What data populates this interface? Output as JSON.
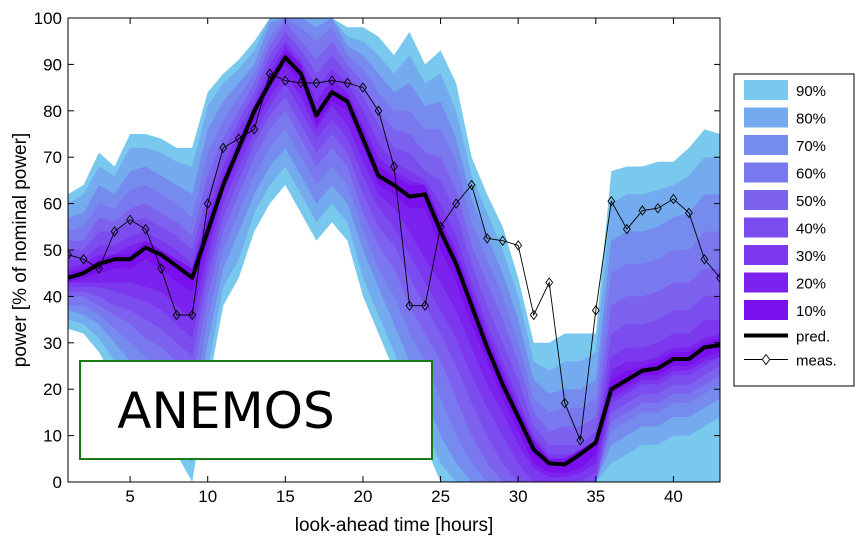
{
  "chart_data": {
    "type": "area",
    "xlabel": "look-ahead time [hours]",
    "ylabel": "power [% of nominal power]",
    "xlim": [
      1,
      43
    ],
    "ylim": [
      0,
      100
    ],
    "xticks": [
      5,
      10,
      15,
      20,
      25,
      30,
      35,
      40
    ],
    "yticks": [
      0,
      10,
      20,
      30,
      40,
      50,
      60,
      70,
      80,
      90,
      100
    ],
    "legend_position": "right",
    "interval_levels": [
      "90%",
      "80%",
      "70%",
      "60%",
      "50%",
      "40%",
      "30%",
      "20%",
      "10%"
    ],
    "interval_colors": [
      "#79c8ee",
      "#74aaee",
      "#758cee",
      "#7a78ee",
      "#7c62ee",
      "#7c4dee",
      "#7b38ee",
      "#7b22ee",
      "#7a10ee"
    ],
    "x": [
      1,
      2,
      3,
      4,
      5,
      6,
      7,
      8,
      9,
      10,
      11,
      12,
      13,
      14,
      15,
      16,
      17,
      18,
      19,
      20,
      21,
      22,
      23,
      24,
      25,
      26,
      27,
      28,
      29,
      30,
      31,
      32,
      33,
      34,
      35,
      36,
      37,
      38,
      39,
      40,
      41,
      42,
      43
    ],
    "pred": [
      44,
      45,
      47,
      48,
      48,
      50.5,
      49,
      46.5,
      44,
      54,
      64,
      72,
      80,
      86,
      91.5,
      88,
      79,
      84,
      82,
      74,
      66,
      64,
      61.5,
      62,
      54,
      47,
      38,
      29,
      21,
      14,
      7,
      4,
      3.8,
      6,
      8.5,
      20,
      22,
      24,
      24.5,
      26.5,
      26.5,
      29,
      29.5
    ],
    "meas": [
      49,
      48,
      46,
      54,
      56.5,
      54.5,
      46,
      36,
      36,
      60,
      72,
      74,
      76,
      88,
      86.5,
      86,
      86,
      86.5,
      86,
      85,
      80,
      68,
      38,
      38,
      55,
      60,
      64,
      52.5,
      52,
      51,
      36,
      43,
      17,
      9,
      37,
      60.5,
      54.5,
      58.5,
      59,
      61,
      58,
      48,
      44
    ],
    "bands": [
      {
        "level": "90%",
        "lower": [
          33,
          32,
          28,
          22,
          18,
          14,
          12,
          6,
          0,
          20,
          38,
          44,
          54,
          60,
          64,
          58,
          52,
          56,
          52,
          40,
          32,
          24,
          16,
          8,
          0,
          0,
          0,
          0,
          0,
          0,
          0,
          0,
          0,
          0,
          0,
          0,
          0,
          0,
          0,
          0,
          0,
          0,
          0
        ],
        "upper": [
          62,
          64,
          71,
          68,
          75,
          75,
          74,
          72,
          72,
          84,
          88,
          91,
          95,
          100,
          100,
          100,
          100,
          100,
          98,
          98,
          96,
          92,
          97,
          90,
          93,
          86,
          70,
          62,
          55,
          44,
          30,
          30,
          32,
          32,
          32,
          67,
          68,
          68,
          69,
          69,
          72,
          76,
          75
        ]
      },
      {
        "level": "80%",
        "lower": [
          35,
          34,
          31,
          26,
          22,
          18,
          16,
          10,
          4,
          24,
          42,
          48,
          58,
          64,
          68,
          62,
          56,
          60,
          56,
          44,
          36,
          28,
          20,
          12,
          4,
          0,
          0,
          0,
          0,
          0,
          0,
          0,
          0,
          0,
          0,
          4,
          6,
          8,
          8,
          10,
          10,
          12,
          14
        ],
        "upper": [
          60,
          62,
          68,
          66,
          72,
          72,
          71,
          69,
          68,
          81,
          86,
          89,
          93,
          100,
          100,
          100,
          100,
          100,
          96,
          95,
          92,
          88,
          92,
          86,
          88,
          80,
          66,
          58,
          50,
          40,
          26,
          24,
          26,
          26,
          28,
          60,
          62,
          62,
          63,
          64,
          66,
          70,
          70
        ]
      },
      {
        "level": "70%",
        "lower": [
          37,
          36,
          34,
          30,
          26,
          23,
          20,
          16,
          10,
          30,
          46,
          54,
          62,
          68,
          72,
          66,
          60,
          64,
          60,
          50,
          42,
          34,
          26,
          18,
          10,
          4,
          0,
          0,
          0,
          0,
          0,
          0,
          0,
          0,
          0,
          8,
          10,
          12,
          12,
          14,
          14,
          16,
          18
        ],
        "upper": [
          57,
          58,
          64,
          62,
          67,
          68,
          66,
          64,
          62,
          76,
          82,
          86,
          90,
          99,
          100,
          100,
          98,
          100,
          94,
          92,
          88,
          84,
          86,
          81,
          82,
          74,
          61,
          53,
          45,
          35,
          22,
          19,
          20,
          20,
          22,
          52,
          54,
          54,
          55,
          57,
          58,
          62,
          62
        ]
      },
      {
        "level": "60%",
        "lower": [
          38,
          38,
          36,
          33,
          30,
          27,
          25,
          21,
          16,
          35,
          50,
          58,
          66,
          72,
          76,
          70,
          64,
          68,
          64,
          54,
          46,
          40,
          32,
          26,
          18,
          10,
          4,
          0,
          0,
          0,
          0,
          0,
          0,
          0,
          0,
          11,
          13,
          15,
          15,
          17,
          17,
          19,
          21
        ],
        "upper": [
          54,
          55,
          60,
          59,
          63,
          64,
          62,
          60,
          57,
          71,
          78,
          83,
          88,
          96,
          100,
          98,
          95,
          98,
          92,
          89,
          84,
          80,
          80,
          76,
          76,
          69,
          56,
          48,
          40,
          30,
          18,
          15,
          16,
          16,
          18,
          45,
          47,
          47,
          48,
          50,
          50,
          54,
          54
        ]
      },
      {
        "level": "50%",
        "lower": [
          40,
          40,
          38,
          36,
          34,
          31,
          29,
          26,
          22,
          40,
          54,
          62,
          70,
          76,
          80,
          74,
          68,
          72,
          68,
          58,
          51,
          46,
          38,
          32,
          26,
          18,
          10,
          4,
          0,
          0,
          0,
          0,
          0,
          0,
          0,
          13,
          15,
          17,
          17,
          19,
          19,
          21,
          23
        ],
        "upper": [
          52,
          52,
          57,
          56,
          59,
          60,
          58,
          56,
          53,
          66,
          74,
          80,
          86,
          94,
          99,
          95,
          91,
          95,
          90,
          86,
          80,
          76,
          75,
          71,
          70,
          63,
          51,
          43,
          35,
          26,
          15,
          11,
          12,
          12,
          14,
          38,
          40,
          40,
          41,
          43,
          43,
          46,
          46
        ]
      },
      {
        "level": "40%",
        "lower": [
          41,
          41,
          40,
          38,
          37,
          35,
          33,
          30,
          27,
          44,
          57,
          65,
          73,
          79,
          83,
          77,
          71,
          75,
          71,
          62,
          55,
          51,
          44,
          38,
          32,
          25,
          17,
          10,
          4,
          0,
          0,
          0,
          0,
          0,
          0,
          15,
          17,
          19,
          19,
          21,
          21,
          23,
          25
        ],
        "upper": [
          50,
          50,
          54,
          54,
          56,
          57,
          55,
          53,
          50,
          62,
          71,
          78,
          84,
          92,
          97,
          93,
          88,
          92,
          88,
          83,
          77,
          72,
          71,
          67,
          65,
          58,
          47,
          38,
          30,
          22,
          12,
          8,
          8,
          8,
          11,
          32,
          34,
          34,
          35,
          37,
          37,
          40,
          40
        ]
      },
      {
        "level": "30%",
        "lower": [
          42,
          42,
          42,
          41,
          40,
          39,
          37,
          34,
          31,
          47,
          60,
          68,
          75,
          81,
          86,
          80,
          74,
          78,
          74,
          66,
          59,
          55,
          49,
          43,
          37,
          31,
          23,
          16,
          10,
          4,
          0,
          0,
          0,
          0,
          2,
          17,
          19,
          21,
          21,
          23,
          23,
          25,
          27
        ],
        "upper": [
          48,
          48,
          51,
          51,
          53,
          54,
          52,
          50,
          47,
          59,
          68,
          76,
          82,
          90,
          95,
          91,
          85,
          89,
          86,
          80,
          73,
          69,
          67,
          65,
          60,
          53,
          43,
          34,
          26,
          18,
          10,
          6,
          6,
          6,
          9,
          27,
          29,
          29,
          30,
          32,
          32,
          35,
          35
        ]
      },
      {
        "level": "20%",
        "lower": [
          43,
          43,
          43,
          43,
          43,
          42,
          41,
          38,
          35,
          50,
          62,
          70,
          77,
          83,
          88,
          83,
          76,
          81,
          77,
          69,
          62,
          59,
          54,
          48,
          43,
          37,
          29,
          21,
          15,
          8,
          3,
          1,
          1,
          2,
          4,
          18,
          20,
          22,
          22,
          24,
          24,
          26,
          27
        ],
        "upper": [
          46,
          47,
          49,
          49,
          51,
          52,
          50,
          48,
          46,
          57,
          66,
          74,
          81,
          88,
          94,
          90,
          82,
          87,
          84,
          77,
          70,
          67,
          65,
          64,
          57,
          50,
          41,
          32,
          24,
          16,
          9,
          5,
          5,
          6,
          8,
          24,
          26,
          26,
          27,
          29,
          29,
          31,
          32
        ]
      },
      {
        "level": "10%",
        "lower": [
          43,
          44,
          45,
          46,
          46,
          48,
          46,
          43,
          41,
          52,
          63,
          71,
          78,
          85,
          90,
          86,
          77,
          82,
          80,
          72,
          64,
          62,
          59,
          59,
          50,
          43,
          34,
          26,
          18,
          11,
          4,
          2,
          2,
          3,
          6,
          19,
          21,
          23,
          23,
          25,
          25,
          27,
          28
        ],
        "upper": [
          45,
          46,
          48,
          49,
          49,
          52,
          50,
          48,
          46,
          56,
          65,
          73,
          81,
          87,
          93,
          90,
          80,
          85,
          83,
          76,
          68,
          66,
          64,
          64,
          56,
          49,
          40,
          31,
          23,
          16,
          9,
          5,
          5,
          7,
          9,
          22,
          24,
          25,
          26,
          28,
          28,
          30,
          31
        ]
      }
    ],
    "legend": {
      "bands": [
        "90%",
        "80%",
        "70%",
        "60%",
        "50%",
        "40%",
        "30%",
        "20%",
        "10%"
      ],
      "pred_label": "pred.",
      "meas_label": "meas."
    },
    "pred_color": "#000000",
    "meas_color": "#000000"
  },
  "watermark": {
    "text": "ANEMOS",
    "border_color": "#1a7a1a"
  }
}
